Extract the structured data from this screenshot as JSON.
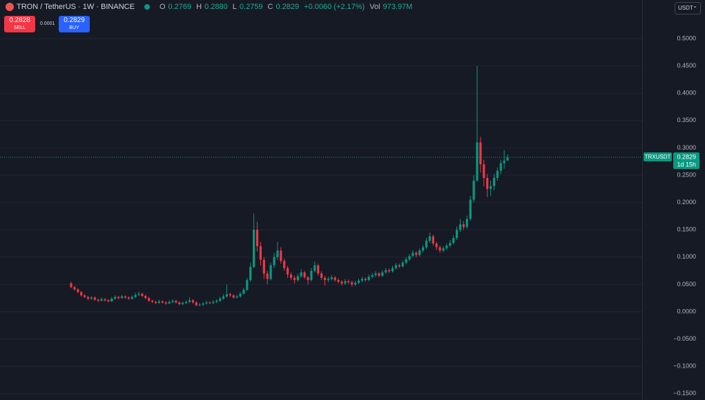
{
  "header": {
    "symbol": "TRON / TetherUS · 1W · BINANCE",
    "ohlc": [
      {
        "key": "O",
        "value": "0.2769"
      },
      {
        "key": "H",
        "value": "0.2880"
      },
      {
        "key": "L",
        "value": "0.2759"
      },
      {
        "key": "C",
        "value": "0.2829"
      }
    ],
    "change": "+0.0060 (+2.17%)",
    "volume_label": "Vol",
    "volume": "973.97M"
  },
  "trade": {
    "sell_price": "0.2828",
    "sell_label": "SELL",
    "spread": "0.0001",
    "buy_price": "0.2829",
    "buy_label": "BUY"
  },
  "currency": "USDT",
  "chart_data": {
    "type": "candlestick",
    "up_color": "#089981",
    "down_color": "#f23645",
    "grid": true,
    "open": [
      0.052,
      0.045,
      0.041,
      0.036,
      0.03,
      0.027,
      0.024,
      0.026,
      0.022,
      0.02,
      0.023,
      0.021,
      0.019,
      0.024,
      0.027,
      0.025,
      0.028,
      0.026,
      0.024,
      0.027,
      0.031,
      0.033,
      0.029,
      0.025,
      0.02,
      0.018,
      0.016,
      0.019,
      0.017,
      0.015,
      0.018,
      0.02,
      0.017,
      0.014,
      0.016,
      0.018,
      0.021,
      0.017,
      0.012,
      0.013,
      0.015,
      0.017,
      0.016,
      0.018,
      0.02,
      0.024,
      0.028,
      0.032,
      0.03,
      0.026,
      0.028,
      0.033,
      0.04,
      0.058,
      0.082,
      0.15,
      0.12,
      0.095,
      0.07,
      0.06,
      0.085,
      0.1,
      0.112,
      0.093,
      0.08,
      0.068,
      0.062,
      0.058,
      0.065,
      0.072,
      0.063,
      0.058,
      0.075,
      0.085,
      0.07,
      0.062,
      0.058,
      0.06,
      0.063,
      0.058,
      0.055,
      0.052,
      0.056,
      0.054,
      0.05,
      0.053,
      0.057,
      0.06,
      0.058,
      0.064,
      0.067,
      0.07,
      0.066,
      0.072,
      0.076,
      0.074,
      0.08,
      0.085,
      0.083,
      0.09,
      0.096,
      0.102,
      0.108,
      0.104,
      0.112,
      0.118,
      0.13,
      0.138,
      0.125,
      0.118,
      0.112,
      0.116,
      0.121,
      0.126,
      0.135,
      0.15,
      0.16,
      0.155,
      0.17,
      0.205,
      0.24,
      0.31,
      0.27,
      0.245,
      0.225,
      0.23,
      0.245,
      0.258,
      0.272,
      0.2769
    ],
    "high": [
      0.055,
      0.047,
      0.043,
      0.038,
      0.032,
      0.029,
      0.029,
      0.028,
      0.024,
      0.026,
      0.025,
      0.023,
      0.027,
      0.03,
      0.029,
      0.031,
      0.03,
      0.028,
      0.03,
      0.035,
      0.037,
      0.035,
      0.031,
      0.027,
      0.022,
      0.02,
      0.022,
      0.021,
      0.019,
      0.021,
      0.023,
      0.022,
      0.019,
      0.019,
      0.021,
      0.026,
      0.023,
      0.019,
      0.016,
      0.018,
      0.02,
      0.019,
      0.021,
      0.023,
      0.027,
      0.032,
      0.05,
      0.035,
      0.032,
      0.031,
      0.036,
      0.044,
      0.062,
      0.09,
      0.18,
      0.165,
      0.128,
      0.1,
      0.075,
      0.09,
      0.108,
      0.128,
      0.118,
      0.097,
      0.084,
      0.072,
      0.066,
      0.07,
      0.078,
      0.075,
      0.066,
      0.08,
      0.092,
      0.088,
      0.074,
      0.066,
      0.064,
      0.067,
      0.065,
      0.061,
      0.058,
      0.06,
      0.059,
      0.057,
      0.057,
      0.061,
      0.064,
      0.063,
      0.068,
      0.071,
      0.074,
      0.073,
      0.076,
      0.08,
      0.079,
      0.084,
      0.089,
      0.088,
      0.094,
      0.1,
      0.106,
      0.113,
      0.111,
      0.116,
      0.122,
      0.135,
      0.145,
      0.141,
      0.128,
      0.121,
      0.12,
      0.125,
      0.131,
      0.14,
      0.156,
      0.17,
      0.166,
      0.176,
      0.212,
      0.25,
      0.45,
      0.32,
      0.278,
      0.252,
      0.24,
      0.252,
      0.264,
      0.278,
      0.296,
      0.288
    ],
    "low": [
      0.043,
      0.039,
      0.034,
      0.028,
      0.025,
      0.021,
      0.022,
      0.02,
      0.018,
      0.019,
      0.019,
      0.017,
      0.018,
      0.022,
      0.023,
      0.024,
      0.024,
      0.022,
      0.022,
      0.025,
      0.029,
      0.027,
      0.023,
      0.018,
      0.016,
      0.014,
      0.015,
      0.015,
      0.013,
      0.014,
      0.016,
      0.015,
      0.012,
      0.012,
      0.014,
      0.016,
      0.015,
      0.01,
      0.01,
      0.011,
      0.013,
      0.014,
      0.014,
      0.016,
      0.018,
      0.022,
      0.026,
      0.027,
      0.024,
      0.024,
      0.026,
      0.031,
      0.038,
      0.055,
      0.08,
      0.11,
      0.085,
      0.06,
      0.05,
      0.057,
      0.08,
      0.095,
      0.088,
      0.075,
      0.062,
      0.058,
      0.052,
      0.055,
      0.062,
      0.06,
      0.05,
      0.055,
      0.072,
      0.066,
      0.058,
      0.048,
      0.054,
      0.057,
      0.055,
      0.052,
      0.048,
      0.049,
      0.051,
      0.046,
      0.047,
      0.051,
      0.054,
      0.055,
      0.056,
      0.061,
      0.064,
      0.063,
      0.064,
      0.069,
      0.071,
      0.072,
      0.077,
      0.08,
      0.081,
      0.087,
      0.093,
      0.099,
      0.1,
      0.101,
      0.109,
      0.115,
      0.126,
      0.121,
      0.113,
      0.108,
      0.109,
      0.113,
      0.118,
      0.123,
      0.131,
      0.146,
      0.15,
      0.152,
      0.166,
      0.2,
      0.238,
      0.255,
      0.23,
      0.21,
      0.212,
      0.222,
      0.24,
      0.252,
      0.262,
      0.2759
    ],
    "close": [
      0.045,
      0.041,
      0.036,
      0.03,
      0.027,
      0.024,
      0.026,
      0.022,
      0.02,
      0.023,
      0.021,
      0.019,
      0.024,
      0.027,
      0.025,
      0.028,
      0.026,
      0.024,
      0.027,
      0.031,
      0.033,
      0.029,
      0.025,
      0.02,
      0.018,
      0.016,
      0.019,
      0.017,
      0.015,
      0.018,
      0.02,
      0.017,
      0.014,
      0.016,
      0.018,
      0.021,
      0.017,
      0.012,
      0.013,
      0.015,
      0.017,
      0.016,
      0.018,
      0.02,
      0.024,
      0.028,
      0.032,
      0.03,
      0.026,
      0.028,
      0.033,
      0.04,
      0.058,
      0.082,
      0.15,
      0.12,
      0.095,
      0.07,
      0.06,
      0.085,
      0.1,
      0.112,
      0.093,
      0.08,
      0.068,
      0.062,
      0.058,
      0.065,
      0.072,
      0.063,
      0.058,
      0.075,
      0.085,
      0.07,
      0.062,
      0.058,
      0.06,
      0.063,
      0.058,
      0.055,
      0.052,
      0.056,
      0.054,
      0.05,
      0.053,
      0.057,
      0.06,
      0.058,
      0.064,
      0.067,
      0.07,
      0.066,
      0.072,
      0.076,
      0.074,
      0.08,
      0.085,
      0.083,
      0.09,
      0.096,
      0.102,
      0.108,
      0.104,
      0.112,
      0.118,
      0.13,
      0.138,
      0.125,
      0.118,
      0.112,
      0.116,
      0.121,
      0.126,
      0.135,
      0.15,
      0.16,
      0.155,
      0.17,
      0.205,
      0.24,
      0.31,
      0.27,
      0.245,
      0.225,
      0.23,
      0.245,
      0.258,
      0.272,
      0.2769,
      0.2829
    ],
    "ylim": [
      -0.1616,
      0.5707
    ],
    "yticks": [
      {
        "value": 0.5,
        "label": "0.5000"
      },
      {
        "value": 0.45,
        "label": "0.4500"
      },
      {
        "value": 0.4,
        "label": "0.4000"
      },
      {
        "value": 0.35,
        "label": "0.3500"
      },
      {
        "value": 0.3,
        "label": "0.3000"
      },
      {
        "value": 0.25,
        "label": "0.2500"
      },
      {
        "value": 0.2,
        "label": "0.2000"
      },
      {
        "value": 0.15,
        "label": "0.1500"
      },
      {
        "value": 0.1,
        "label": "0.1000"
      },
      {
        "value": 0.05,
        "label": "0.0500"
      },
      {
        "value": 0,
        "label": "0.0000"
      },
      {
        "value": -0.05,
        "label": "−0.0500"
      },
      {
        "value": -0.1,
        "label": "−0.1000"
      },
      {
        "value": -0.15,
        "label": "−0.1500"
      }
    ],
    "last_price": 0.2829,
    "symbol_label": "TRXUSDT",
    "countdown": "1d 15h"
  }
}
